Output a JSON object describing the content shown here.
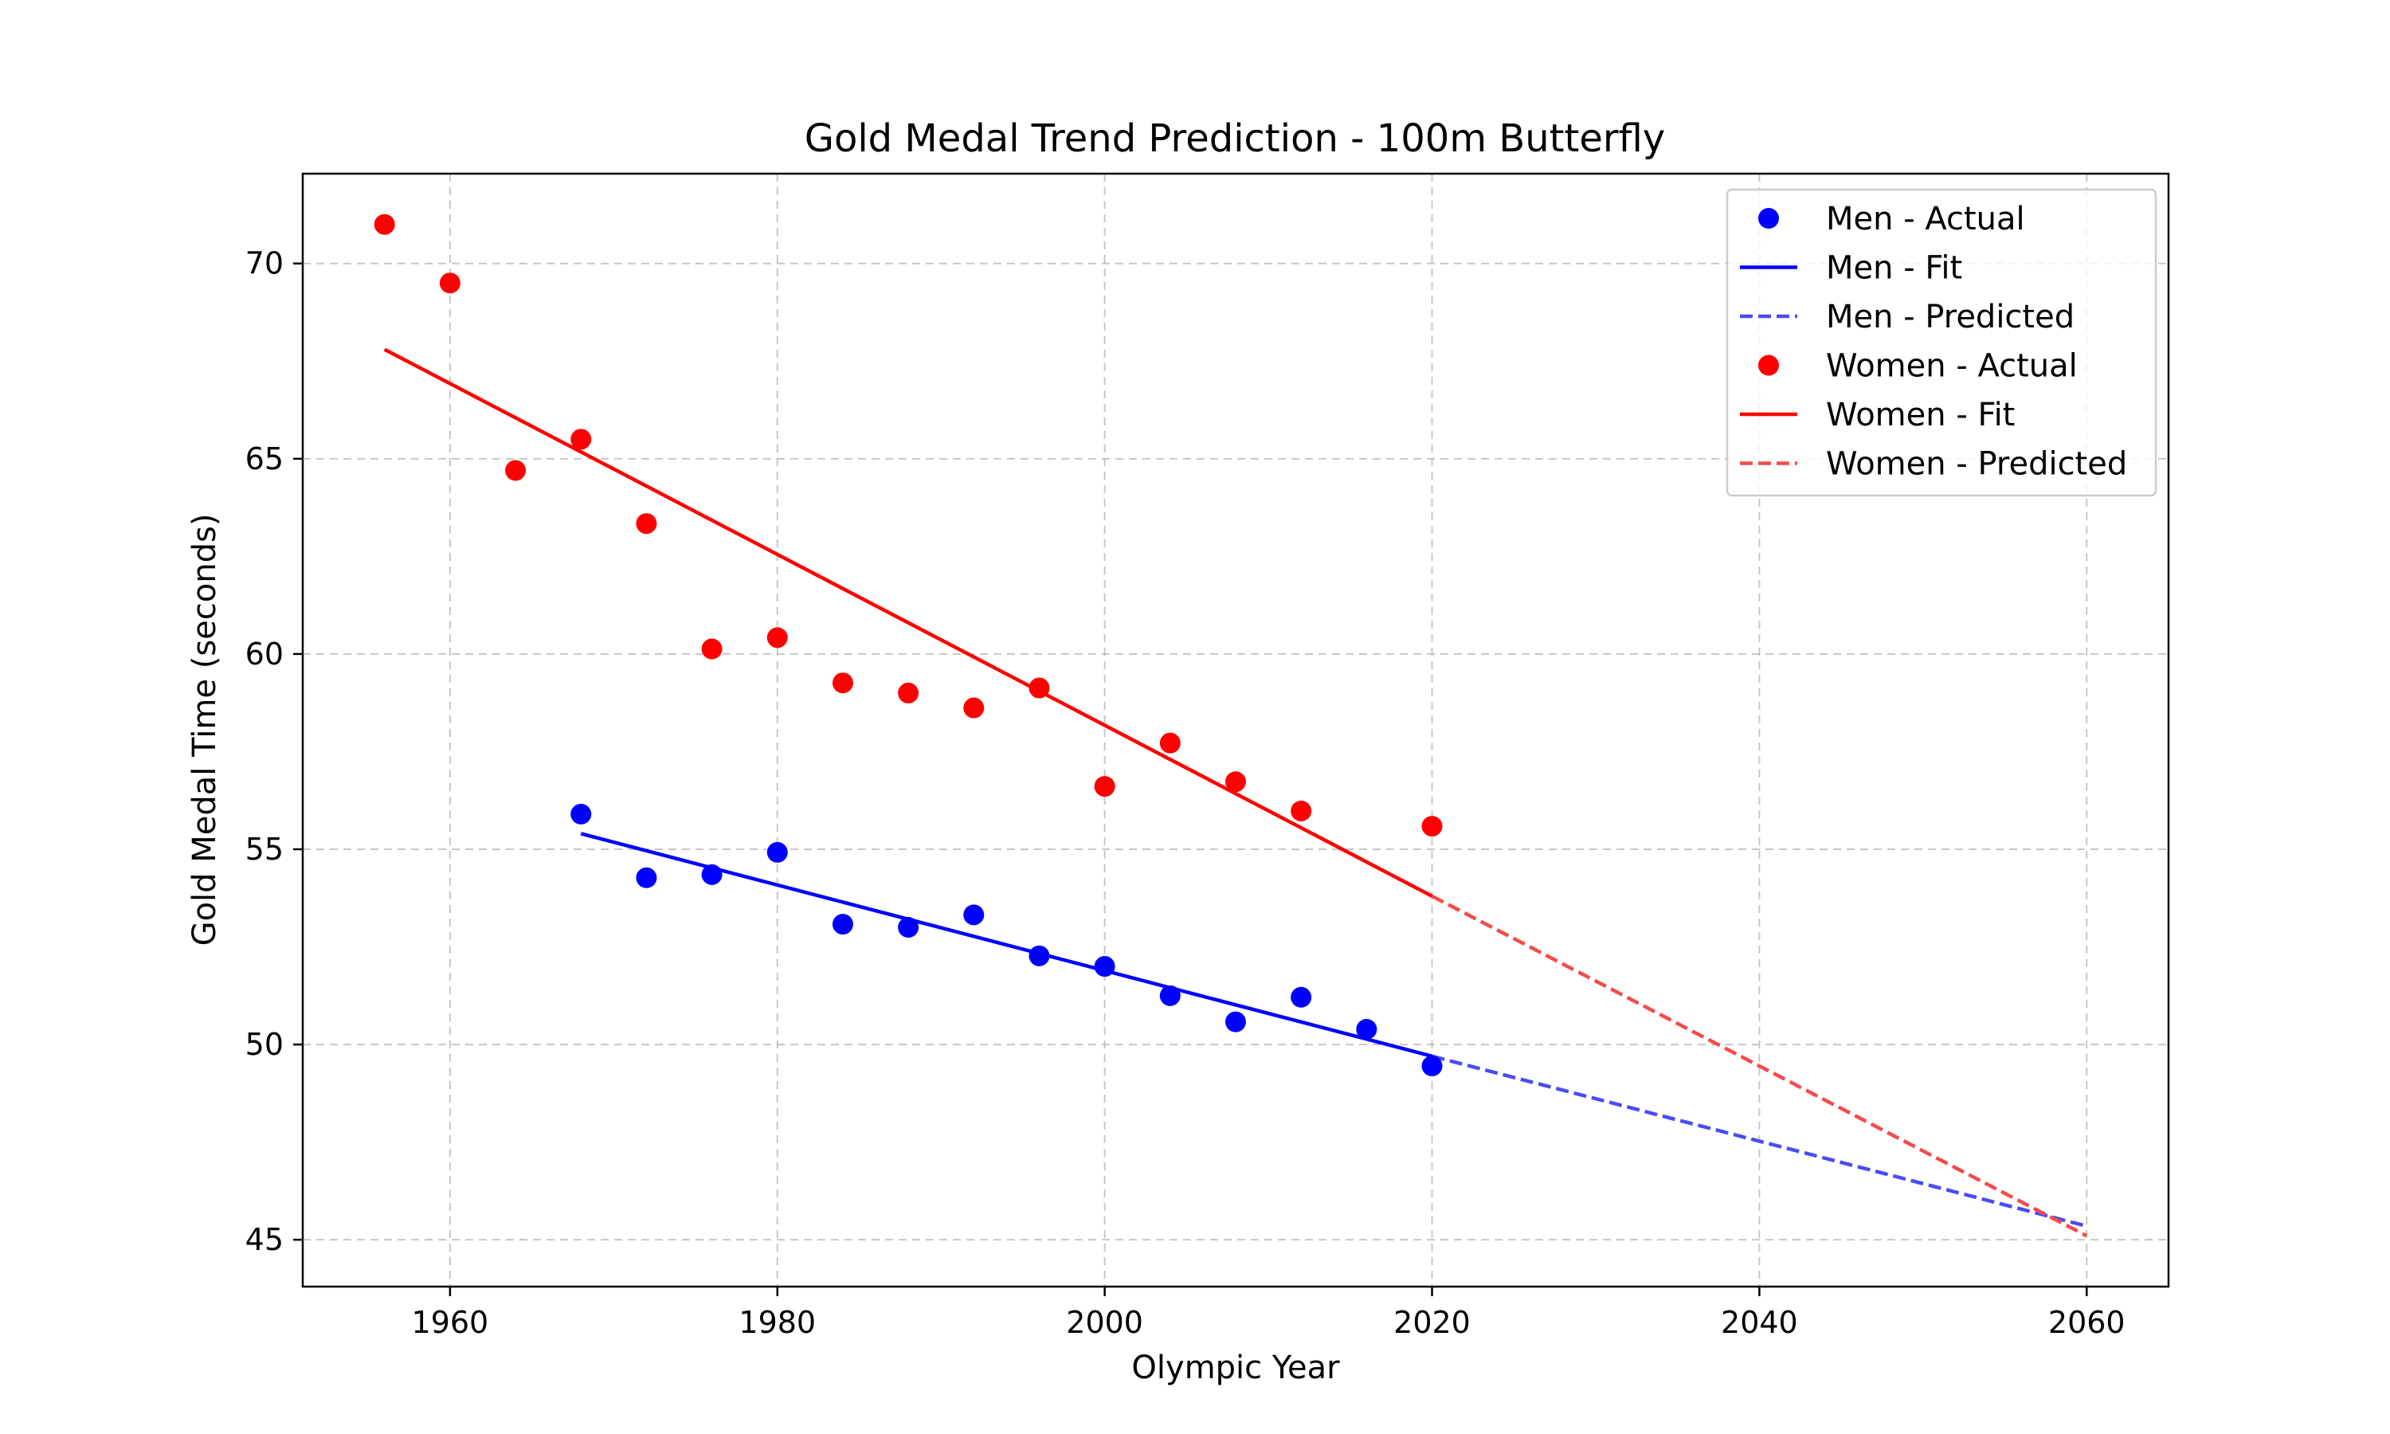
{
  "chart_data": {
    "type": "scatter",
    "title": "Gold Medal Trend Prediction - 100m Butterfly",
    "xlabel": "Olympic Year",
    "ylabel": "Gold Medal Time (seconds)",
    "xlim": [
      1951,
      2065
    ],
    "ylim": [
      43.8,
      72.3
    ],
    "xticks": [
      1960,
      1980,
      2000,
      2020,
      2040,
      2060
    ],
    "yticks": [
      45,
      50,
      55,
      60,
      65,
      70
    ],
    "grid": true,
    "legend_position": "top-right",
    "series": [
      {
        "name": "Men - Actual",
        "kind": "scatter",
        "color": "#0000ff",
        "x": [
          1968,
          1972,
          1976,
          1980,
          1984,
          1988,
          1992,
          1996,
          2000,
          2004,
          2008,
          2012,
          2016,
          2020
        ],
        "y": [
          55.9,
          54.27,
          54.35,
          54.92,
          53.08,
          53.0,
          53.32,
          52.27,
          52.0,
          51.25,
          50.58,
          51.21,
          50.39,
          49.45
        ]
      },
      {
        "name": "Men - Fit",
        "kind": "line",
        "color": "#0000ff",
        "dash": false,
        "x": [
          1968,
          2020
        ],
        "y": [
          55.4,
          49.7
        ]
      },
      {
        "name": "Men - Predicted",
        "kind": "line",
        "color": "#4b4bf5",
        "dash": true,
        "x": [
          2020,
          2060
        ],
        "y": [
          49.7,
          45.35
        ]
      },
      {
        "name": "Women - Actual",
        "kind": "scatter",
        "color": "#ff0000",
        "x": [
          1956,
          1960,
          1964,
          1968,
          1972,
          1976,
          1980,
          1984,
          1988,
          1992,
          1996,
          2000,
          2004,
          2008,
          2012,
          2020
        ],
        "y": [
          71.0,
          69.5,
          64.7,
          65.5,
          63.34,
          60.13,
          60.42,
          59.26,
          59.0,
          58.62,
          59.13,
          56.61,
          57.72,
          56.73,
          55.98,
          55.59
        ]
      },
      {
        "name": "Women - Fit",
        "kind": "line",
        "color": "#ff0000",
        "dash": false,
        "x": [
          1956,
          2020
        ],
        "y": [
          67.8,
          53.8
        ]
      },
      {
        "name": "Women - Predicted",
        "kind": "line",
        "color": "#f54b4b",
        "dash": true,
        "x": [
          2020,
          2060
        ],
        "y": [
          53.8,
          45.1
        ]
      }
    ]
  }
}
